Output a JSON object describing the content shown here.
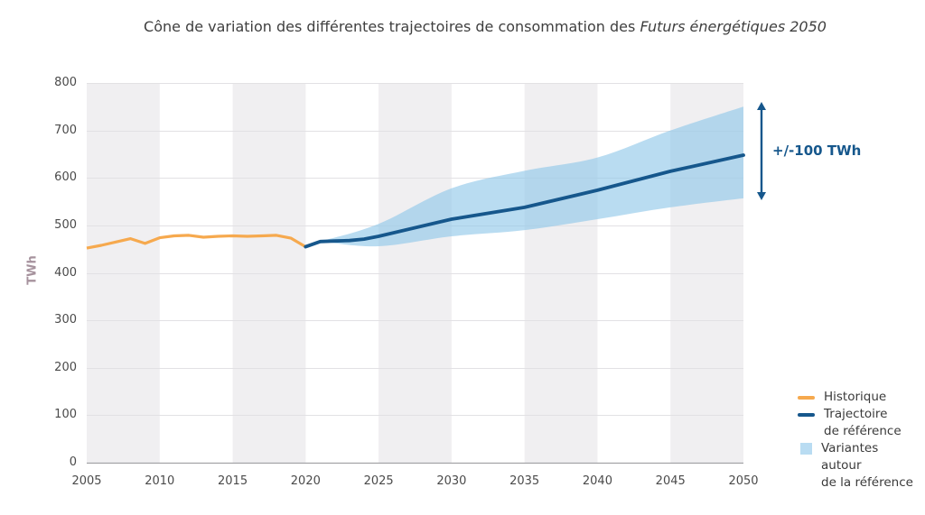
{
  "title": {
    "main": "Cône de variation des différentes trajectoires de consommation des ",
    "italic": "Futurs énergétiques 2050"
  },
  "annotation": {
    "label": "+/-100 TWh"
  },
  "legend": {
    "items": [
      {
        "label": "Historique",
        "swatch": "line",
        "color": "#f6a94e"
      },
      {
        "label": "Trajectoire\nde référence",
        "swatch": "line",
        "color": "#16578c"
      },
      {
        "label": "Variantes autour\nde la référence",
        "swatch": "square",
        "color": "#b9dcf2"
      }
    ]
  },
  "chart_data": {
    "type": "line",
    "title": "Cône de variation des différentes trajectoires de consommation des Futurs énergétiques 2050",
    "xlabel": "",
    "ylabel": "TWh",
    "xlim": [
      2005,
      2050
    ],
    "ylim": [
      0,
      800
    ],
    "xticks": [
      2005,
      2010,
      2015,
      2020,
      2025,
      2030,
      2035,
      2040,
      2045,
      2050
    ],
    "yticks": [
      0,
      100,
      200,
      300,
      400,
      500,
      600,
      700,
      800
    ],
    "grid": "horizontal",
    "legend_position": "bottom-right",
    "series": [
      {
        "name": "Historique",
        "color": "#f6a94e",
        "width": 3.2,
        "x": [
          2005,
          2006,
          2007,
          2008,
          2009,
          2010,
          2011,
          2012,
          2013,
          2014,
          2015,
          2016,
          2017,
          2018,
          2019,
          2020
        ],
        "values": [
          452,
          458,
          465,
          472,
          462,
          474,
          478,
          479,
          475,
          477,
          478,
          477,
          478,
          479,
          473,
          455
        ]
      },
      {
        "name": "Trajectoire de référence",
        "color": "#16578c",
        "width": 3.8,
        "x": [
          2020,
          2021,
          2022,
          2023,
          2024,
          2025,
          2030,
          2035,
          2040,
          2045,
          2050
        ],
        "values": [
          455,
          466,
          467,
          468,
          471,
          477,
          513,
          538,
          574,
          614,
          648
        ]
      }
    ],
    "band": {
      "name": "Variantes autour de la référence",
      "color": "#8ec6e8",
      "opacity": 0.62,
      "x": [
        2021,
        2025,
        2030,
        2035,
        2040,
        2045,
        2050
      ],
      "upper": [
        466,
        503,
        578,
        615,
        643,
        700,
        750
      ],
      "lower": [
        466,
        456,
        477,
        490,
        513,
        538,
        557
      ]
    },
    "annotation": {
      "label": "+/-100 TWh",
      "x": 2050,
      "span_values": [
        553,
        760
      ],
      "color": "#16578c"
    },
    "style": {
      "band_fill": "#f0eff1",
      "grid_color": "#e2e1e4",
      "axis_color": "#a3a3a6"
    }
  }
}
